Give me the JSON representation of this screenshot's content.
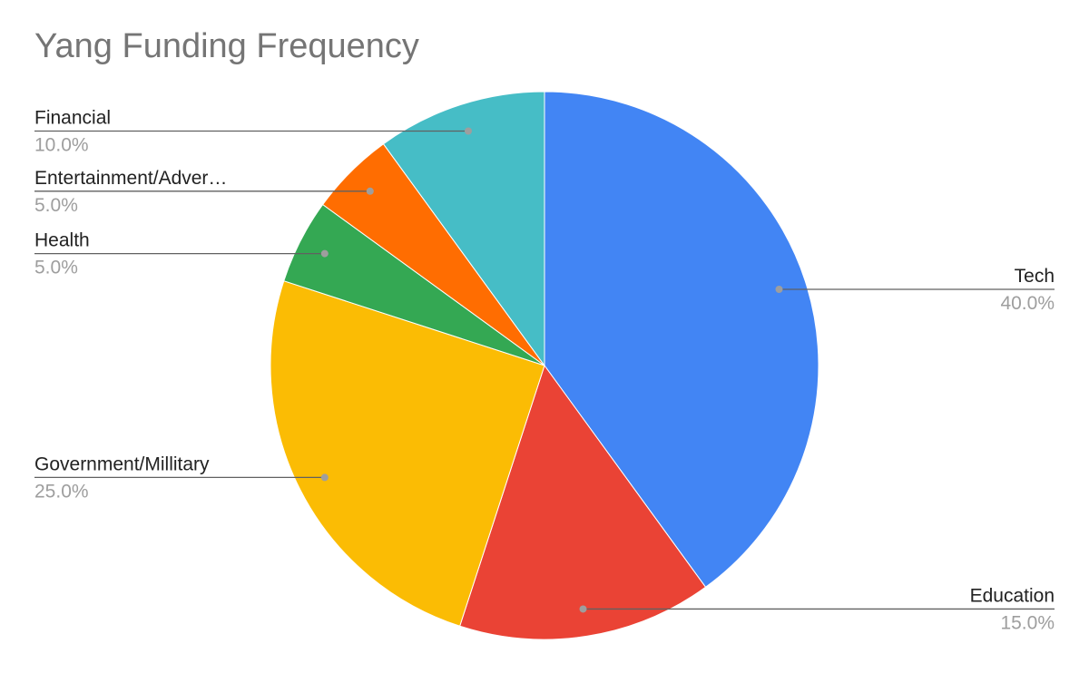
{
  "chart_data": {
    "type": "pie",
    "title": "Yang Funding Frequency",
    "slices": [
      {
        "label": "Tech",
        "display_label": "Tech",
        "value": 40.0,
        "percent_label": "40.0%",
        "color": "#4285f4"
      },
      {
        "label": "Education",
        "display_label": "Education",
        "value": 15.0,
        "percent_label": "15.0%",
        "color": "#ea4335"
      },
      {
        "label": "Government/Millitary",
        "display_label": "Government/Millitary",
        "value": 25.0,
        "percent_label": "25.0%",
        "color": "#fbbc04"
      },
      {
        "label": "Health",
        "display_label": "Health",
        "value": 5.0,
        "percent_label": "5.0%",
        "color": "#34a853"
      },
      {
        "label": "Entertainment/Adver…",
        "display_label": "Entertainment/Adver…",
        "value": 5.0,
        "percent_label": "5.0%",
        "color": "#ff6d01"
      },
      {
        "label": "Financial",
        "display_label": "Financial",
        "value": 10.0,
        "percent_label": "10.0%",
        "color": "#46bdc6"
      }
    ],
    "start_angle": "12 o'clock",
    "direction": "clockwise",
    "legend": "none",
    "label_placement": "outside-with-leader-lines"
  }
}
